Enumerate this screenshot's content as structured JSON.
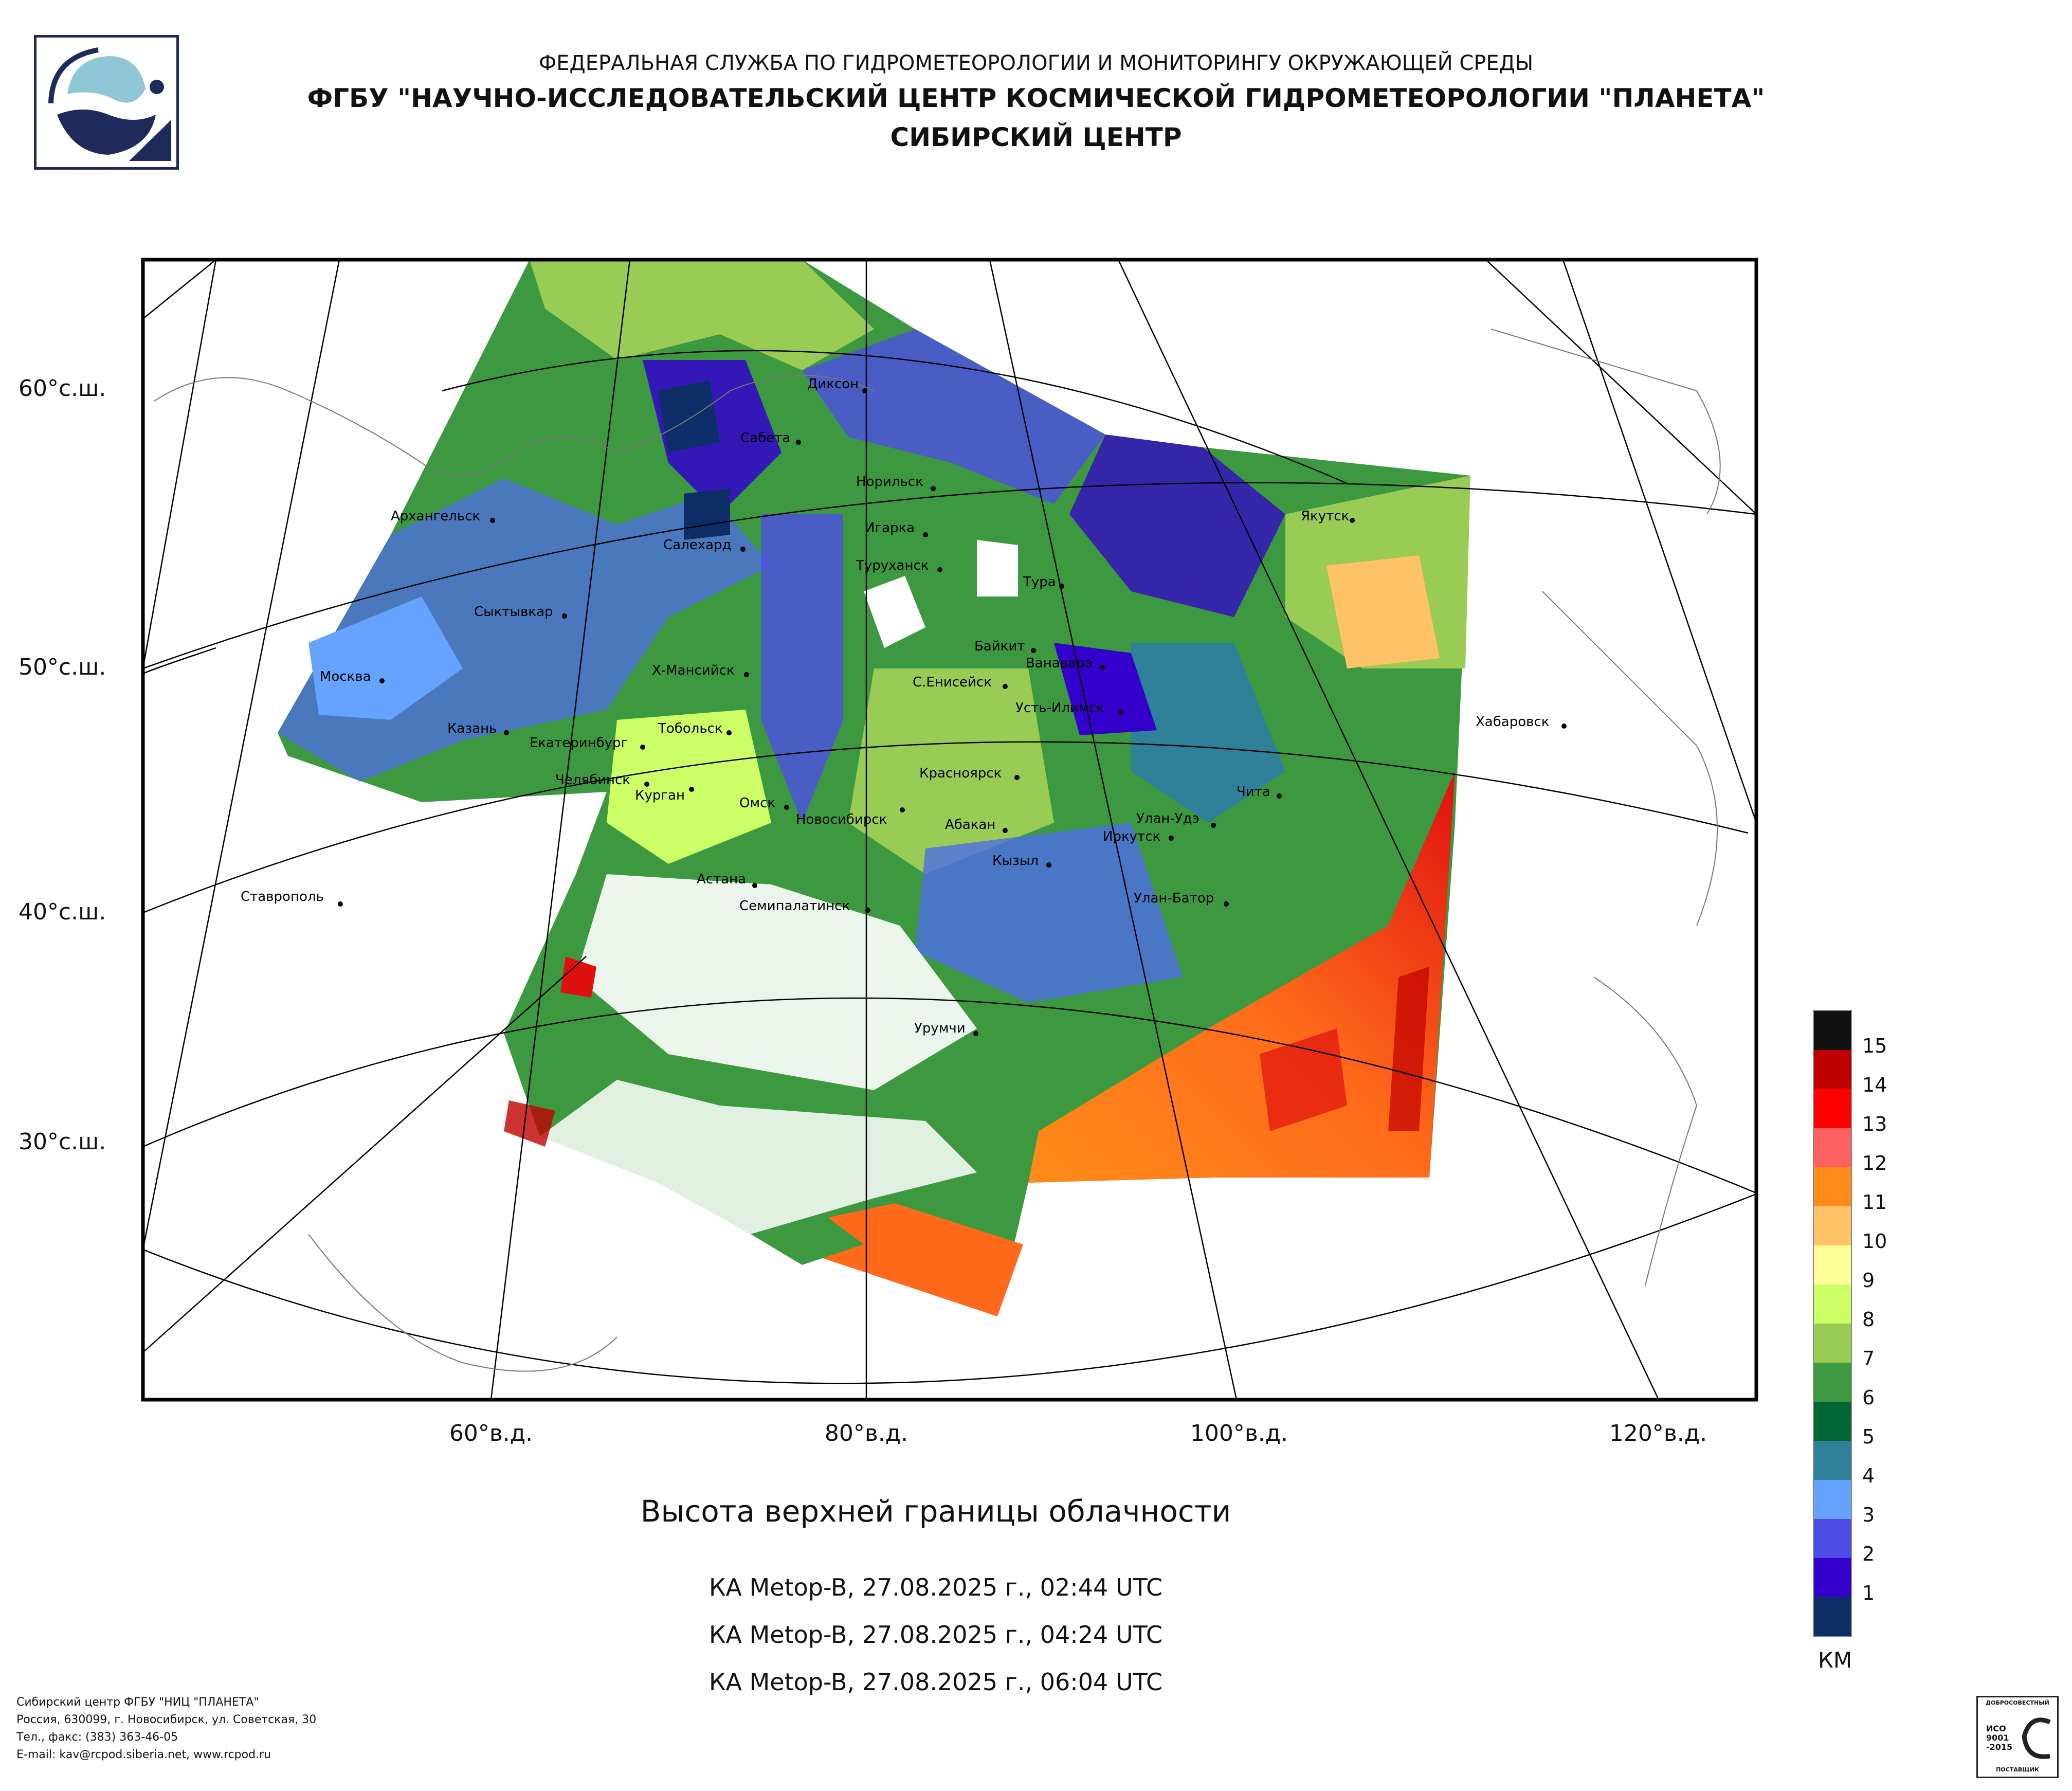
{
  "header": {
    "agency": "ФЕДЕРАЛЬНАЯ СЛУЖБА ПО ГИДРОМЕТЕОРОЛОГИИ И МОНИТОРИНГУ ОКРУЖАЮЩЕЙ СРЕДЫ",
    "organization": "ФГБУ \"НАУЧНО-ИССЛЕДОВАТЕЛЬСКИЙ ЦЕНТР КОСМИЧЕСКОЙ ГИДРОМЕТЕОРОЛОГИИ \"ПЛАНЕТА\"",
    "center": "СИБИРСКИЙ ЦЕНТР"
  },
  "map": {
    "lat_labels": [
      "60°с.ш.",
      "50°с.ш.",
      "40°с.ш.",
      "30°с.ш."
    ],
    "lon_labels": [
      "60°в.д.",
      "80°в.д.",
      "100°в.д.",
      "120°в.д."
    ],
    "cities": [
      "Диксон",
      "Сабета",
      "Норильск",
      "Игарка",
      "Туруханск",
      "Салехард",
      "Архангельск",
      "Сыктывкар",
      "Тура",
      "Якутск",
      "Байкит",
      "Ванавара",
      "Москва",
      "Х-Мансийск",
      "С.Енисейск",
      "Усть-Илимск",
      "Казань",
      "Екатеринбург",
      "Тобольск",
      "Хабаровск",
      "Челябинск",
      "Курган",
      "Красноярск",
      "Чита",
      "Омск",
      "Новосибирск",
      "Абакан",
      "Улан-Удэ",
      "Иркутск",
      "Кызыл",
      "Астана",
      "Ставрополь",
      "Улан-Батор",
      "Семипалатинск",
      "Урумчи"
    ]
  },
  "title": "Высота верхней границы облачности",
  "passes": [
    "КА Metop-B, 27.08.2025 г., 02:44 UTC",
    "КА Metop-B, 27.08.2025 г., 04:24 UTC",
    "КА Metop-B, 27.08.2025 г., 06:04 UTC"
  ],
  "legend": {
    "unit": "КМ",
    "levels": [
      {
        "value": "15",
        "color": "#111111"
      },
      {
        "value": "14",
        "color": "#c00000"
      },
      {
        "value": "13",
        "color": "#ff0000"
      },
      {
        "value": "12",
        "color": "#ff6060"
      },
      {
        "value": "11",
        "color": "#ff8c1a"
      },
      {
        "value": "10",
        "color": "#ffc266"
      },
      {
        "value": "9",
        "color": "#ffff99"
      },
      {
        "value": "8",
        "color": "#ccff66"
      },
      {
        "value": "7",
        "color": "#99cc55"
      },
      {
        "value": "6",
        "color": "#3d9940"
      },
      {
        "value": "5",
        "color": "#006633"
      },
      {
        "value": "4",
        "color": "#2f8099"
      },
      {
        "value": "3",
        "color": "#66a3ff"
      },
      {
        "value": "2",
        "color": "#4d4de6"
      },
      {
        "value": "1",
        "color": "#3300cc"
      },
      {
        "value": "",
        "color": "#0d2e66"
      }
    ]
  },
  "footer": {
    "line1": "Сибирский центр ФГБУ \"НИЦ \"ПЛАНЕТА\"",
    "line2": "Россия, 630099, г. Новосибирск, ул. Советская, 30",
    "line3": "Тел., факс: (383) 363-46-05",
    "line4": "E-mail: kav@rcpod.siberia.net, www.rcpod.ru"
  },
  "cert": {
    "top": "ДОБРОСОВЕСТНЫЙ",
    "text": "ИСО 9001 -2015",
    "bottom": "ПОСТАВЩИК"
  }
}
